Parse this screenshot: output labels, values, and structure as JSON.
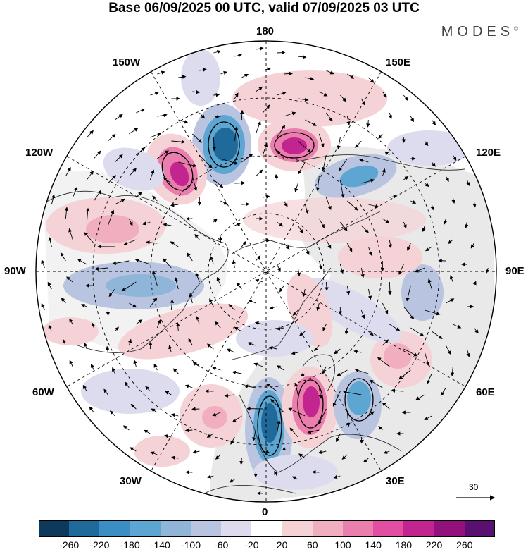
{
  "title": "Base 06/09/2025 00 UTC, valid 07/09/2025 03 UTC",
  "brand": "MODES",
  "brand_mark": "©",
  "longitude_labels": {
    "top": "180",
    "bottom": "0",
    "left": "90W",
    "right": "90E",
    "upper_left_1": "150W",
    "upper_left_2": "120W",
    "lower_left_1": "60W",
    "lower_left_2": "30W",
    "upper_right_1": "150E",
    "upper_right_2": "120E",
    "lower_right_1": "60E",
    "lower_right_2": "30E"
  },
  "vector_reference": "30",
  "colorbar": {
    "tick_labels": [
      "-260",
      "-220",
      "-180",
      "-140",
      "-100",
      "-60",
      "-20",
      "20",
      "60",
      "100",
      "140",
      "180",
      "220",
      "260"
    ],
    "colors": [
      "#0d3a5c",
      "#1f6a9a",
      "#3a8ec4",
      "#5ea6d2",
      "#8fb6d9",
      "#b9c5e0",
      "#dcdcee",
      "#ffffff",
      "#f5d2d6",
      "#f0aebe",
      "#ea7fae",
      "#e04fa2",
      "#c2258f",
      "#93117c",
      "#5a1070"
    ]
  },
  "anomaly_features": [
    {
      "sign": "negative",
      "region": "north Pacific near 160W",
      "peak": -200
    },
    {
      "sign": "positive",
      "region": "north Pacific near 170E",
      "peak": 200
    },
    {
      "sign": "positive",
      "region": "Alaska / 140W",
      "peak": 190
    },
    {
      "sign": "negative",
      "region": "Siberia 120E",
      "peak": -130
    },
    {
      "sign": "positive",
      "region": "Canada 100W",
      "peak": 110
    },
    {
      "sign": "negative",
      "region": "Hudson Bay 90W",
      "peak": -110
    },
    {
      "sign": "negative",
      "region": "North Atlantic 0",
      "peak": -190
    },
    {
      "sign": "positive",
      "region": "Scandinavia 15E",
      "peak": 170
    },
    {
      "sign": "negative",
      "region": "Russia 40E",
      "peak": -120
    },
    {
      "sign": "positive",
      "region": "Western Siberia 60E",
      "peak": 90
    },
    {
      "sign": "positive",
      "region": "Atlantic 40W",
      "peak": 80
    },
    {
      "sign": "negative",
      "region": "Central Asia 80E",
      "peak": -70
    }
  ]
}
